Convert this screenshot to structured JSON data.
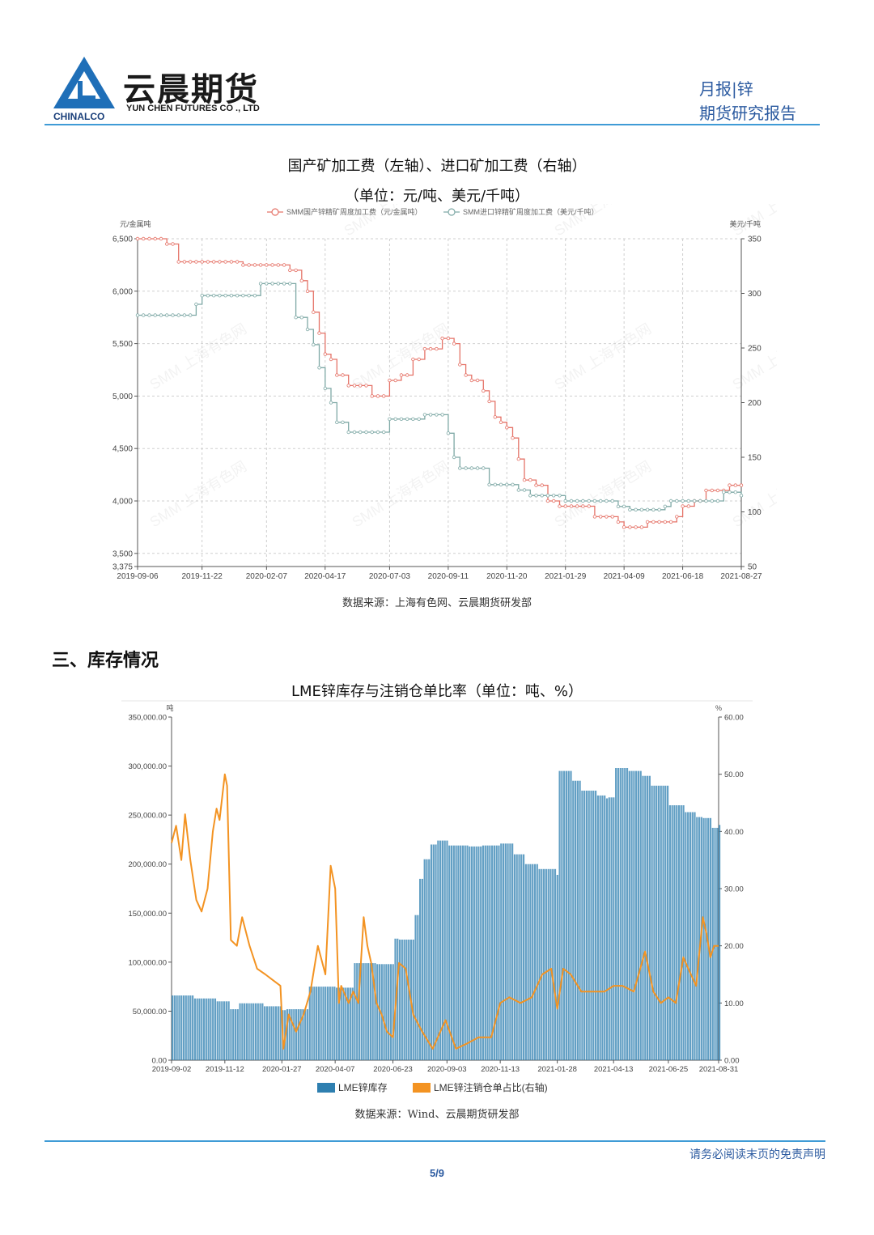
{
  "header": {
    "logo_cn": "云晨期货",
    "logo_en": "YUN CHEN FUTURES CO ., LTD",
    "logo_sub": "CHINALCO",
    "right_line1": "月报|锌",
    "right_line2": "期货研究报告"
  },
  "chart1": {
    "title": "国产矿加工费（左轴）、进口矿加工费（右轴）",
    "subtitle": "（单位：元/吨、美元/千吨）",
    "source": "数据来源：上海有色网、云晨期货研发部",
    "watermark": "SMM 上海有色网",
    "left_unit": "元/金属吨",
    "right_unit": "美元/千吨"
  },
  "section": {
    "title": "三、库存情况"
  },
  "chart2": {
    "title": "LME锌库存与注销仓单比率（单位：吨、%）",
    "left_unit": "吨",
    "right_unit": "%",
    "source": "数据来源：Wind、云晨期货研发部"
  },
  "footer": {
    "note": "请务必阅读末页的免责声明",
    "page": "5/9"
  },
  "colors": {
    "accent": "#3f9bd6",
    "domestic": "#e57368",
    "imported": "#7fa9a6",
    "inventory": "#2e7fb0",
    "ratio": "#f39322"
  },
  "chart_data": [
    {
      "type": "line",
      "x_ticks": [
        "2019-09-06",
        "2019-11-22",
        "2020-02-07",
        "2020-04-17",
        "2020-07-03",
        "2020-09-11",
        "2020-11-20",
        "2021-01-29",
        "2021-04-09",
        "2021-06-18",
        "2021-08-27"
      ],
      "y_left_ticks": [
        "6,500",
        "6,000",
        "5,500",
        "5,000",
        "4,500",
        "4,000",
        "3,500",
        "3,375"
      ],
      "y_right_ticks": [
        "350",
        "300",
        "250",
        "200",
        "150",
        "100",
        "50"
      ],
      "ylim_left": [
        3375,
        6500
      ],
      "ylim_right": [
        50,
        350
      ],
      "grid": true,
      "legend_position": "top",
      "series": [
        {
          "name": "SMM国产锌精矿周度加工费（元/金属吨）",
          "axis": "left",
          "x": [
            "2019-09-06",
            "2019-09-27",
            "2019-10-11",
            "2019-10-25",
            "2019-11-22",
            "2019-12-20",
            "2020-01-10",
            "2020-01-24",
            "2020-02-21",
            "2020-03-06",
            "2020-03-13",
            "2020-03-20",
            "2020-03-27",
            "2020-04-03",
            "2020-04-10",
            "2020-04-17",
            "2020-04-24",
            "2020-05-01",
            "2020-05-15",
            "2020-05-29",
            "2020-06-12",
            "2020-06-26",
            "2020-07-03",
            "2020-07-17",
            "2020-07-24",
            "2020-07-31",
            "2020-08-14",
            "2020-08-28",
            "2020-09-04",
            "2020-09-11",
            "2020-09-18",
            "2020-09-25",
            "2020-10-02",
            "2020-10-09",
            "2020-10-16",
            "2020-10-23",
            "2020-10-30",
            "2020-11-06",
            "2020-11-13",
            "2020-11-20",
            "2020-11-27",
            "2020-12-04",
            "2020-12-11",
            "2020-12-25",
            "2021-01-08",
            "2021-01-22",
            "2021-01-29",
            "2021-02-26",
            "2021-03-05",
            "2021-03-19",
            "2021-04-02",
            "2021-04-09",
            "2021-04-23",
            "2021-05-07",
            "2021-05-21",
            "2021-06-04",
            "2021-06-11",
            "2021-06-18",
            "2021-06-25",
            "2021-07-02",
            "2021-07-16",
            "2021-07-30",
            "2021-08-06",
            "2021-08-13",
            "2021-08-20",
            "2021-08-27"
          ],
          "values": [
            6500,
            6500,
            6450,
            6280,
            6280,
            6280,
            6250,
            6250,
            6250,
            6200,
            6200,
            6100,
            6000,
            5800,
            5600,
            5400,
            5350,
            5200,
            5100,
            5100,
            5000,
            5000,
            5150,
            5200,
            5200,
            5350,
            5450,
            5450,
            5550,
            5550,
            5500,
            5300,
            5200,
            5150,
            5150,
            5050,
            4950,
            4800,
            4750,
            4700,
            4600,
            4400,
            4200,
            4150,
            4000,
            3950,
            3950,
            3950,
            3850,
            3850,
            3800,
            3750,
            3750,
            3800,
            3800,
            3800,
            3850,
            3950,
            3950,
            4000,
            4100,
            4100,
            4100,
            4150,
            4150,
            4150
          ]
        },
        {
          "name": "SMM进口锌精矿周度加工费（美元/千吨）",
          "axis": "right",
          "x": [
            "2019-09-06",
            "2019-11-08",
            "2019-11-15",
            "2019-11-22",
            "2019-12-20",
            "2020-01-17",
            "2020-01-31",
            "2020-02-07",
            "2020-02-21",
            "2020-02-28",
            "2020-03-06",
            "2020-03-13",
            "2020-03-27",
            "2020-04-03",
            "2020-04-10",
            "2020-04-17",
            "2020-04-24",
            "2020-05-01",
            "2020-05-15",
            "2020-05-29",
            "2020-06-12",
            "2020-06-26",
            "2020-07-03",
            "2020-07-17",
            "2020-07-31",
            "2020-08-14",
            "2020-08-28",
            "2020-09-04",
            "2020-09-11",
            "2020-09-18",
            "2020-09-25",
            "2020-10-02",
            "2020-10-16",
            "2020-10-23",
            "2020-10-30",
            "2020-11-13",
            "2020-11-20",
            "2020-11-27",
            "2020-12-04",
            "2020-12-18",
            "2021-01-01",
            "2021-01-08",
            "2021-01-15",
            "2021-01-29",
            "2021-02-26",
            "2021-03-12",
            "2021-03-19",
            "2021-04-02",
            "2021-04-09",
            "2021-04-16",
            "2021-04-23",
            "2021-05-14",
            "2021-05-21",
            "2021-05-28",
            "2021-06-04",
            "2021-06-18",
            "2021-06-25",
            "2021-07-09",
            "2021-07-16",
            "2021-08-06",
            "2021-08-20",
            "2021-08-27"
          ],
          "values": [
            280,
            280,
            290,
            298,
            298,
            298,
            309,
            309,
            309,
            309,
            309,
            278,
            267,
            253,
            232,
            213,
            200,
            182,
            173,
            173,
            173,
            173,
            185,
            185,
            185,
            189,
            189,
            189,
            172,
            150,
            140,
            140,
            140,
            140,
            125,
            125,
            125,
            125,
            120,
            115,
            115,
            115,
            115,
            110,
            110,
            110,
            110,
            105,
            105,
            102,
            102,
            102,
            102,
            105,
            110,
            110,
            110,
            110,
            110,
            118,
            118,
            115
          ]
        }
      ]
    },
    {
      "type": "bar",
      "x_ticks": [
        "2019-09-02",
        "2019-11-12",
        "2020-01-27",
        "2020-04-07",
        "2020-06-23",
        "2020-09-03",
        "2020-11-13",
        "2021-01-28",
        "2021-04-13",
        "2021-06-25",
        "2021-08-31"
      ],
      "y_left_ticks": [
        "350,000.00",
        "300,000.00",
        "250,000.00",
        "200,000.00",
        "150,000.00",
        "100,000.00",
        "50,000.00",
        "0.00"
      ],
      "y_right_ticks": [
        "60.00",
        "50.00",
        "40.00",
        "30.00",
        "20.00",
        "10.00",
        "0.00"
      ],
      "ylim_left": [
        0,
        350000
      ],
      "ylim_right": [
        0,
        60
      ],
      "grid": false,
      "legend_position": "bottom",
      "series": [
        {
          "name": "LME锌库存",
          "axis": "left",
          "kind": "bar",
          "x": [
            "2019-09-02",
            "2019-10-01",
            "2019-10-20",
            "2019-11-01",
            "2019-11-19",
            "2019-12-01",
            "2020-01-01",
            "2020-01-27",
            "2020-02-01",
            "2020-03-01",
            "2020-04-07",
            "2020-04-15",
            "2020-05-01",
            "2020-05-20",
            "2020-06-01",
            "2020-06-23",
            "2020-07-01",
            "2020-07-10",
            "2020-07-20",
            "2020-07-28",
            "2020-08-01",
            "2020-08-10",
            "2020-08-20",
            "2020-09-03",
            "2020-10-01",
            "2020-10-20",
            "2020-11-13",
            "2020-12-01",
            "2020-12-15",
            "2021-01-01",
            "2021-01-27",
            "2021-01-28",
            "2021-02-15",
            "2021-03-01",
            "2021-03-20",
            "2021-04-01",
            "2021-04-05",
            "2021-04-13",
            "2021-05-01",
            "2021-05-20",
            "2021-06-01",
            "2021-06-25",
            "2021-07-15",
            "2021-08-01",
            "2021-08-10",
            "2021-08-20",
            "2021-08-31"
          ],
          "values": [
            66000,
            63000,
            63000,
            60000,
            52000,
            58000,
            55000,
            51000,
            52000,
            75000,
            74000,
            74000,
            99000,
            99000,
            98000,
            124000,
            123000,
            123000,
            148000,
            185000,
            205000,
            220000,
            224000,
            219000,
            218000,
            219000,
            221000,
            210000,
            200000,
            195000,
            189000,
            295000,
            285000,
            275000,
            270000,
            267000,
            268000,
            298000,
            295000,
            290000,
            280000,
            260000,
            253000,
            248000,
            247000,
            237000,
            240000
          ]
        },
        {
          "name": "LME锌注销仓单占比(右轴)",
          "axis": "right",
          "kind": "line",
          "x": [
            "2019-09-02",
            "2019-09-08",
            "2019-09-15",
            "2019-09-20",
            "2019-09-27",
            "2019-10-05",
            "2019-10-12",
            "2019-10-20",
            "2019-10-27",
            "2019-11-01",
            "2019-11-05",
            "2019-11-12",
            "2019-11-15",
            "2019-11-20",
            "2019-11-28",
            "2019-12-05",
            "2019-12-15",
            "2019-12-25",
            "2020-01-05",
            "2020-01-15",
            "2020-01-25",
            "2020-01-29",
            "2020-02-05",
            "2020-02-15",
            "2020-02-25",
            "2020-03-05",
            "2020-03-15",
            "2020-03-25",
            "2020-04-01",
            "2020-04-07",
            "2020-04-12",
            "2020-04-15",
            "2020-04-25",
            "2020-05-01",
            "2020-05-08",
            "2020-05-15",
            "2020-05-20",
            "2020-05-25",
            "2020-06-01",
            "2020-06-08",
            "2020-06-15",
            "2020-06-23",
            "2020-07-01",
            "2020-07-10",
            "2020-07-20",
            "2020-08-01",
            "2020-08-15",
            "2020-09-01",
            "2020-09-15",
            "2020-10-01",
            "2020-10-15",
            "2020-11-01",
            "2020-11-13",
            "2020-11-25",
            "2020-12-10",
            "2020-12-25",
            "2021-01-08",
            "2021-01-20",
            "2021-01-28",
            "2021-02-05",
            "2021-02-15",
            "2021-03-01",
            "2021-03-20",
            "2021-04-01",
            "2021-04-13",
            "2021-04-25",
            "2021-05-10",
            "2021-05-25",
            "2021-06-05",
            "2021-06-15",
            "2021-06-25",
            "2021-07-05",
            "2021-07-15",
            "2021-07-25",
            "2021-08-01",
            "2021-08-10",
            "2021-08-15",
            "2021-08-20",
            "2021-08-25",
            "2021-08-31"
          ],
          "values": [
            38,
            41,
            35,
            43,
            35,
            28,
            26,
            30,
            40,
            44,
            42,
            50,
            48,
            21,
            20,
            25,
            20,
            16,
            15,
            14,
            13,
            2,
            8,
            5,
            8,
            12,
            20,
            15,
            34,
            30,
            10,
            13,
            10,
            12,
            10,
            25,
            20,
            17,
            10,
            8,
            5,
            4,
            17,
            16,
            8,
            5,
            2,
            7,
            2,
            3,
            4,
            4,
            10,
            11,
            10,
            11,
            15,
            16,
            9,
            16,
            15,
            12,
            12,
            12,
            13,
            13,
            12,
            19,
            12,
            10,
            11,
            10,
            18,
            15,
            13,
            25,
            22,
            18,
            20,
            20
          ]
        }
      ]
    }
  ]
}
